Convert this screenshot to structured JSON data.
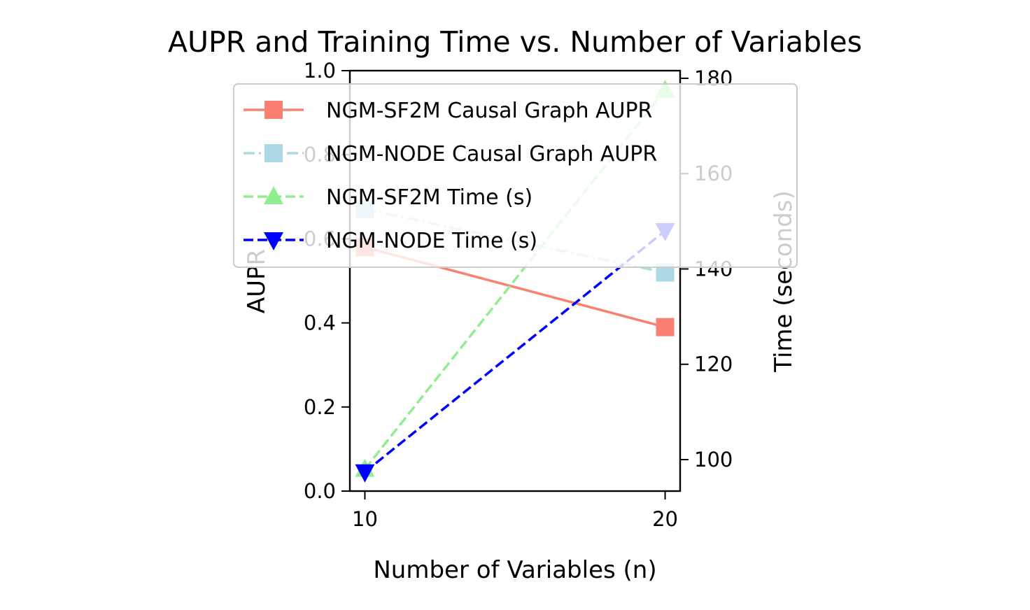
{
  "chart_data": {
    "type": "line",
    "title": "AUPR and Training Time vs. Number of Variables",
    "xlabel": "Number of Variables (n)",
    "ylabel": "AUPR",
    "y2label": "Time (seconds)",
    "x": [
      10,
      20
    ],
    "x_ticks": [
      "10",
      "20"
    ],
    "xlim": [
      9.5,
      20.5
    ],
    "ylim": [
      0.0,
      1.0
    ],
    "y_ticks": [
      "0.0",
      "0.2",
      "0.4",
      "0.6",
      "0.8",
      "1.0"
    ],
    "y2lim": [
      93.4,
      181.6
    ],
    "y2_ticks": [
      "100",
      "120",
      "140",
      "160",
      "180"
    ],
    "grid": false,
    "legend_position": "upper-center",
    "series": [
      {
        "name": "NGM-SF2M Causal Graph AUPR",
        "axis": "left",
        "values": [
          0.58,
          0.39
        ],
        "color": "#fa8072",
        "linestyle": "solid",
        "marker": "square"
      },
      {
        "name": "NGM-NODE Causal Graph AUPR",
        "axis": "left",
        "values": [
          0.67,
          0.52
        ],
        "color": "#add8e6",
        "linestyle": "dashdot",
        "marker": "square"
      },
      {
        "name": "NGM-SF2M Time (s)",
        "axis": "right",
        "values": [
          98,
          177.5
        ],
        "color": "#90ee90",
        "linestyle": "dashed",
        "marker": "triangle-up"
      },
      {
        "name": "NGM-NODE Time (s)",
        "axis": "right",
        "values": [
          97.4,
          148
        ],
        "color": "#0000ff",
        "linestyle": "dashed",
        "marker": "triangle-down"
      }
    ]
  }
}
